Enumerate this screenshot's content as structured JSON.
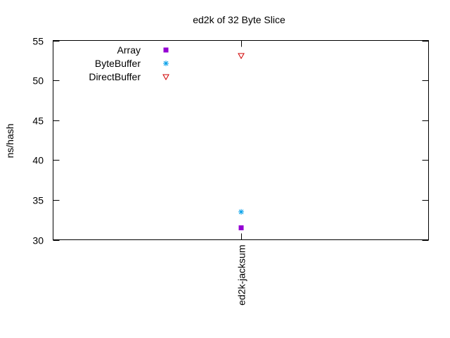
{
  "chart_data": {
    "type": "scatter",
    "title": "ed2k of 32 Byte Slice",
    "xlabel": "",
    "ylabel": "ns/hash",
    "categories": [
      "ed2k-jacksum"
    ],
    "ylim": [
      30,
      55
    ],
    "yticks": [
      "30",
      "35",
      "40",
      "45",
      "50",
      "55"
    ],
    "grid": false,
    "legend_position": "top-left",
    "series": [
      {
        "name": "Array",
        "values": [
          31.5
        ],
        "color": "#9400d3",
        "marker": "filled-square"
      },
      {
        "name": "ByteBuffer",
        "values": [
          33.5
        ],
        "color": "#009ee8",
        "marker": "asterisk"
      },
      {
        "name": "DirectBuffer",
        "values": [
          53.1
        ],
        "color": "#d00000",
        "marker": "open-triangle-down"
      }
    ]
  }
}
